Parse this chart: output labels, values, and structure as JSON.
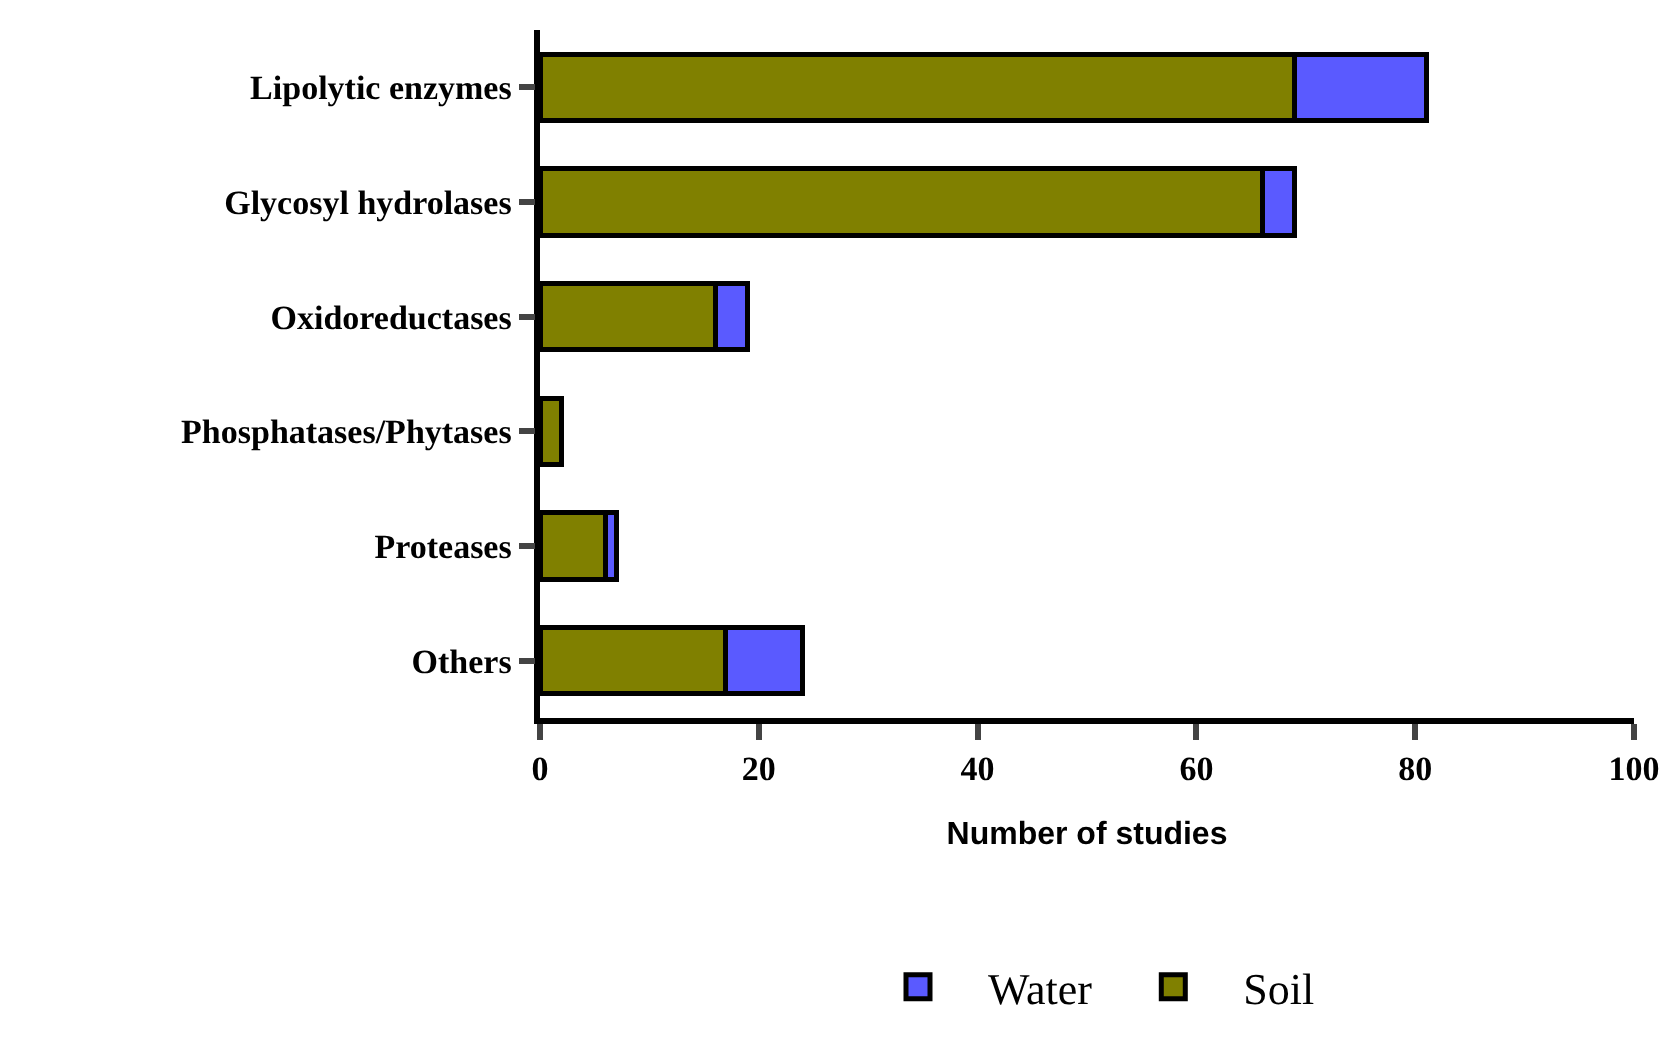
{
  "chart_data": {
    "type": "bar",
    "orientation": "horizontal",
    "stacked": true,
    "xlabel": "Number of studies",
    "categories": [
      "Lipolytic enzymes",
      "Glycosyl hydrolases",
      "Oxidoreductases",
      "Phosphatases/Phytases",
      "Proteases",
      "Others"
    ],
    "series": [
      {
        "name": "Soil",
        "color": "#808000",
        "values": [
          69,
          66,
          16,
          2,
          6,
          17
        ]
      },
      {
        "name": "Water",
        "color": "#5a5aff",
        "values": [
          12,
          3,
          3,
          null,
          1,
          7
        ]
      }
    ],
    "xlim": [
      0,
      100
    ],
    "xticks": [
      0,
      20,
      40,
      60,
      80,
      100
    ],
    "grid": false,
    "legend": "bottom"
  }
}
